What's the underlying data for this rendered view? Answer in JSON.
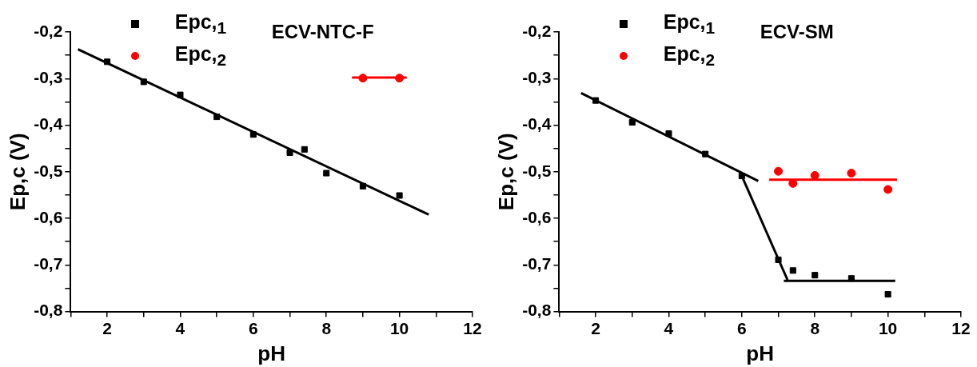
{
  "chart_data": [
    {
      "type": "scatter",
      "title": "ECV-NTC-F",
      "xlabel": "pH",
      "ylabel": "Ep,c (V)",
      "legend": "top left",
      "grid": false,
      "xlim": [
        1,
        12
      ],
      "xticks": [
        {
          "value": 1,
          "label": null
        },
        2,
        {
          "value": 3,
          "label": null
        },
        4,
        {
          "value": 5,
          "label": null
        },
        6,
        {
          "value": 7,
          "label": null
        },
        8,
        {
          "value": 9,
          "label": null
        },
        10,
        {
          "value": 11,
          "label": null
        },
        12
      ],
      "ylim": [
        -0.8,
        -0.2
      ],
      "yticks": [
        {
          "value": -0.8,
          "label": "-0,8"
        },
        {
          "value": -0.75,
          "label": null
        },
        {
          "value": -0.7,
          "label": "-0,7"
        },
        {
          "value": -0.65,
          "label": null
        },
        {
          "value": -0.6,
          "label": "-0,6"
        },
        {
          "value": -0.55,
          "label": null
        },
        {
          "value": -0.5,
          "label": "-0,5"
        },
        {
          "value": -0.45,
          "label": null
        },
        {
          "value": -0.4,
          "label": "-0,4"
        },
        {
          "value": -0.35,
          "label": null
        },
        {
          "value": -0.3,
          "label": "-0,3"
        },
        {
          "value": -0.25,
          "label": null
        },
        {
          "value": -0.2,
          "label": "-0,2"
        }
      ],
      "series": [
        {
          "name": "Epc,$_{1}$",
          "color": "#000000",
          "marker": "square",
          "x": [
            2,
            3,
            4,
            5,
            6,
            7,
            7.4,
            8,
            9,
            10
          ],
          "values": [
            -0.264,
            -0.307,
            -0.335,
            -0.382,
            -0.42,
            -0.459,
            -0.452,
            -0.503,
            -0.531,
            -0.551
          ]
        },
        {
          "name": "Epc,$_{2}$",
          "color": "#ff0000",
          "marker": "circle",
          "x": [
            9,
            10
          ],
          "values": [
            -0.299,
            -0.299
          ]
        },
        {
          "type": "line",
          "color": "#000000",
          "marker": "none",
          "x": [
            1.2,
            10.8
          ],
          "values": [
            -0.237,
            -0.592
          ]
        },
        {
          "type": "line",
          "color": "#ff0000",
          "marker": "none",
          "x": [
            8.7,
            10.2
          ],
          "values": [
            -0.298,
            -0.298
          ]
        }
      ]
    },
    {
      "type": "scatter",
      "title": "ECV-SM",
      "xlabel": "pH",
      "ylabel": "Ep,c (V)",
      "legend": "top left",
      "grid": false,
      "xlim": [
        1,
        12
      ],
      "xticks": [
        {
          "value": 1,
          "label": null
        },
        2,
        {
          "value": 3,
          "label": null
        },
        4,
        {
          "value": 5,
          "label": null
        },
        6,
        {
          "value": 7,
          "label": null
        },
        8,
        {
          "value": 9,
          "label": null
        },
        10,
        {
          "value": 11,
          "label": null
        },
        12
      ],
      "ylim": [
        -0.8,
        -0.2
      ],
      "yticks": [
        {
          "value": -0.8,
          "label": "-0,8"
        },
        {
          "value": -0.75,
          "label": null
        },
        {
          "value": -0.7,
          "label": "-0,7"
        },
        {
          "value": -0.65,
          "label": null
        },
        {
          "value": -0.6,
          "label": "-0,6"
        },
        {
          "value": -0.55,
          "label": null
        },
        {
          "value": -0.5,
          "label": "-0,5"
        },
        {
          "value": -0.45,
          "label": null
        },
        {
          "value": -0.4,
          "label": "-0,4"
        },
        {
          "value": -0.35,
          "label": null
        },
        {
          "value": -0.3,
          "label": "-0,3"
        },
        {
          "value": -0.25,
          "label": null
        },
        {
          "value": -0.2,
          "label": "-0,2"
        }
      ],
      "series": [
        {
          "name": "Epc,$_{1}$",
          "color": "#000000",
          "marker": "square",
          "x": [
            2,
            3,
            4,
            5,
            6,
            7,
            7.4,
            8,
            9,
            10
          ],
          "values": [
            -0.347,
            -0.394,
            -0.418,
            -0.462,
            -0.509,
            -0.689,
            -0.712,
            -0.722,
            -0.729,
            -0.763
          ]
        },
        {
          "name": "Epc,$_{2}$",
          "color": "#ff0000",
          "marker": "circle",
          "x": [
            7,
            7.4,
            8,
            9,
            10
          ],
          "values": [
            -0.499,
            -0.525,
            -0.508,
            -0.503,
            -0.538
          ]
        },
        {
          "type": "line",
          "color": "#000000",
          "marker": "none",
          "x": [
            1.6,
            6.45
          ],
          "values": [
            -0.331,
            -0.52
          ]
        },
        {
          "type": "line",
          "color": "#000000",
          "marker": "none",
          "x": [
            6.0,
            7.25
          ],
          "values": [
            -0.509,
            -0.732
          ]
        },
        {
          "type": "line",
          "color": "#000000",
          "marker": "none",
          "x": [
            7.15,
            10.2
          ],
          "values": [
            -0.734,
            -0.734
          ]
        },
        {
          "type": "line",
          "color": "#ff0000",
          "marker": "none",
          "x": [
            6.75,
            10.25
          ],
          "values": [
            -0.517,
            -0.517
          ]
        }
      ]
    }
  ]
}
